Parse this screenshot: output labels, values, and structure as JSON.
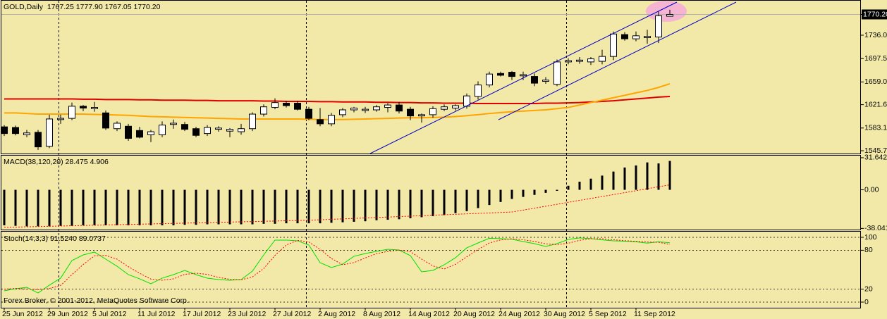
{
  "chart_data": [
    {
      "type": "candlestick",
      "title": "GOLD,Daily  1767.25 1777.90 1767.05 1770.20",
      "categories": [
        "25 Jun 2012",
        null,
        null,
        null,
        "29 Jun 2012",
        null,
        null,
        null,
        "5 Jul 2012",
        null,
        null,
        null,
        "11 Jul 2012",
        null,
        null,
        null,
        "17 Jul 2012",
        null,
        null,
        null,
        "23 Jul 2012",
        null,
        null,
        null,
        "27 Jul 2012",
        null,
        null,
        null,
        "2 Aug 2012",
        null,
        null,
        null,
        "8 Aug 2012",
        null,
        null,
        null,
        "14 Aug 2012",
        null,
        null,
        null,
        "20 Aug 2012",
        null,
        null,
        null,
        "24 Aug 2012",
        null,
        null,
        null,
        "30 Aug 2012",
        null,
        null,
        null,
        "5 Sep 2012",
        null,
        null,
        null,
        "11 Sep 2012",
        null,
        null,
        null
      ],
      "open": [
        1585,
        1584,
        1572,
        1576,
        1553,
        1597,
        1599,
        1619,
        1615,
        1608,
        1582,
        1586,
        1579,
        1572,
        1572,
        1589,
        1589,
        1582,
        1574,
        1581,
        1578,
        1577,
        1582,
        1606,
        1617,
        1624,
        1624,
        1614,
        1597,
        1590,
        1605,
        1613,
        1612,
        1613,
        1617,
        1621,
        1614,
        1603,
        1605,
        1614,
        1616,
        1619,
        1635,
        1654,
        1673,
        1675,
        1669,
        1668,
        1660,
        1655,
        1692,
        1693,
        1692,
        1693,
        1701,
        1737,
        1730,
        1732,
        1733,
        1767.25
      ],
      "high": [
        1588,
        1587,
        1580,
        1580,
        1605,
        1605,
        1625,
        1621,
        1626,
        1612,
        1594,
        1590,
        1585,
        1580,
        1594,
        1597,
        1593,
        1585,
        1588,
        1586,
        1583,
        1590,
        1609,
        1622,
        1632,
        1628,
        1628,
        1618,
        1616,
        1608,
        1616,
        1618,
        1618,
        1621,
        1624,
        1626,
        1618,
        1607,
        1619,
        1622,
        1622,
        1640,
        1660,
        1676,
        1676,
        1677,
        1676,
        1673,
        1667,
        1696,
        1698,
        1700,
        1700,
        1712,
        1742,
        1741,
        1742,
        1745,
        1775,
        1777.9
      ],
      "low": [
        1570,
        1571,
        1568,
        1547,
        1550,
        1590,
        1596,
        1611,
        1610,
        1580,
        1578,
        1562,
        1566,
        1560,
        1568,
        1582,
        1578,
        1568,
        1570,
        1577,
        1568,
        1572,
        1578,
        1602,
        1614,
        1617,
        1612,
        1596,
        1586,
        1586,
        1601,
        1609,
        1608,
        1610,
        1609,
        1607,
        1596,
        1592,
        1600,
        1611,
        1612,
        1615,
        1630,
        1650,
        1668,
        1662,
        1662,
        1652,
        1656,
        1652,
        1688,
        1689,
        1687,
        1688,
        1695,
        1727,
        1726,
        1722,
        1723,
        1767.05
      ],
      "close": [
        1574,
        1574,
        1575,
        1552,
        1598,
        1599,
        1619,
        1616,
        1617,
        1583,
        1591,
        1566,
        1568,
        1577,
        1588,
        1591,
        1581,
        1571,
        1584,
        1583,
        1581,
        1582,
        1606,
        1618,
        1625,
        1620,
        1614,
        1599,
        1590,
        1604,
        1613,
        1616,
        1614,
        1618,
        1621,
        1611,
        1603,
        1605,
        1615,
        1618,
        1620,
        1636,
        1654,
        1672,
        1670,
        1668,
        1671,
        1657,
        1662,
        1692,
        1694,
        1695,
        1697,
        1701,
        1738,
        1730,
        1735,
        1734,
        1768,
        1770.2
      ],
      "up_color": "#ffffff",
      "down_color": "#000000",
      "series": [
        {
          "color": "#e00000",
          "values": [
            1631,
            1631,
            1631,
            1631,
            1631,
            1631,
            1631,
            1630.5,
            1630.5,
            1630,
            1630,
            1630,
            1629.5,
            1629.5,
            1629,
            1629,
            1629,
            1628.5,
            1628.5,
            1628,
            1628,
            1628,
            1628,
            1627.5,
            1627.5,
            1627,
            1627,
            1627,
            1626.5,
            1626.5,
            1626,
            1626,
            1626,
            1625.5,
            1625.5,
            1625,
            1625,
            1624.5,
            1624.5,
            1624,
            1624,
            1624,
            1623.5,
            1623.5,
            1623.5,
            1623.5,
            1623.5,
            1623.5,
            1624,
            1624,
            1624.5,
            1625,
            1626,
            1627,
            1628,
            1629.5,
            1631,
            1632.5,
            1634,
            1635
          ]
        },
        {
          "color": "#ffa500",
          "values": [
            1608,
            1608,
            1607,
            1606,
            1606,
            1606,
            1606,
            1606,
            1605.5,
            1605,
            1604.5,
            1604,
            1603,
            1602,
            1601.5,
            1601,
            1600.5,
            1600,
            1599.5,
            1599,
            1598.5,
            1598,
            1598,
            1598,
            1598,
            1598,
            1598,
            1597.5,
            1597,
            1597,
            1597,
            1597.5,
            1598,
            1598.5,
            1599,
            1599.5,
            1600,
            1600,
            1600.5,
            1601,
            1602,
            1603.5,
            1605,
            1607,
            1608.5,
            1610,
            1611,
            1612,
            1613,
            1615,
            1617,
            1621,
            1625,
            1629,
            1633,
            1637,
            1641,
            1645,
            1650,
            1656
          ]
        }
      ],
      "ylim": [
        1541.1,
        1792.8
      ],
      "yticks": [
        {
          "value": 1770.2,
          "label": "1770.20"
        },
        {
          "value": 1736,
          "label": "1736.00"
        },
        {
          "value": 1697.5,
          "label": "1697.50"
        },
        {
          "value": 1659,
          "label": "1659.00"
        },
        {
          "value": 1621.6,
          "label": "1621.60"
        },
        {
          "value": 1583.1,
          "label": "1583.10"
        },
        {
          "value": 1545.7,
          "label": "1545.70"
        }
      ],
      "grid": false
    },
    {
      "type": "bar",
      "title": "MACD(38,120,20) 28.475 4.906",
      "color": "#000000",
      "values": [
        -35,
        -35.5,
        -36,
        -36,
        -36,
        -35.5,
        -35.5,
        -35,
        -35,
        -35,
        -35,
        -35,
        -35,
        -35,
        -35,
        -35,
        -34.5,
        -34.5,
        -34,
        -34,
        -34,
        -34,
        -34,
        -33.5,
        -33.5,
        -33,
        -33,
        -33,
        -33,
        -32.5,
        -32,
        -31.5,
        -31,
        -30,
        -29.5,
        -29,
        -28,
        -27,
        -26,
        -25,
        -23,
        -21,
        -18,
        -15,
        -12,
        -9,
        -7,
        -5,
        -3,
        -1,
        4,
        8,
        11,
        14,
        18,
        22,
        24,
        27,
        26,
        28.475
      ],
      "series": [
        {
          "color": "#ff0000",
          "values": [
            -37,
            -36.74,
            -36.48,
            -36.22,
            -35.96,
            -35.7,
            -35.44,
            -35.18,
            -34.92,
            -34.66,
            -34.4,
            -34.14,
            -33.88,
            -33.62,
            -33.36,
            -33.1,
            -32.84,
            -32.58,
            -32.32,
            -32.06,
            -31.8,
            -31.54,
            -31.28,
            -31.02,
            -30.76,
            -30.5,
            -30.24,
            -29.98,
            -29.55,
            -29.1,
            -28.65,
            -28.2,
            -27.75,
            -27.3,
            -26.85,
            -26.4,
            -25.95,
            -25.5,
            -25.05,
            -24.6,
            -24.15,
            -23.7,
            -23.25,
            -22.8,
            -22.35,
            -21.9,
            -20,
            -18.1,
            -16.2,
            -14.3,
            -12.3,
            -10.4,
            -8.5,
            -6.6,
            -4.7,
            -2.8,
            -0.9,
            1.1,
            3,
            4.906
          ]
        }
      ],
      "ylim": [
        -38.5,
        33
      ],
      "yticks": [
        31.642,
        {
          "value": 0,
          "label": "0.00"
        },
        -38.041
      ],
      "grid": false
    },
    {
      "type": "line",
      "title": "Stoch(14,3,3) 91.5240 89.0737",
      "series": [
        {
          "color": "#00e000",
          "values": [
            17.4,
            20.7,
            22.8,
            14.1,
            26.1,
            37,
            64.1,
            72.8,
            77.2,
            66.3,
            55.4,
            42.4,
            35.9,
            28.3,
            37,
            42.4,
            48.9,
            42.4,
            37,
            34.8,
            33.7,
            34.8,
            47.8,
            72.8,
            95.7,
            95.7,
            94.6,
            88,
            60.9,
            53.3,
            58.7,
            70.7,
            75,
            78.3,
            81.5,
            80.4,
            71.7,
            46.7,
            48.9,
            57.6,
            68.5,
            83.7,
            91.3,
            98.5,
            98,
            97,
            93.5,
            90.2,
            85.9,
            90.2,
            96.7,
            99,
            98,
            96,
            94.5,
            94,
            93,
            91,
            93,
            91.524
          ]
        },
        {
          "color": "#ff0000",
          "values": [
            20,
            21,
            20.3,
            19.2,
            21,
            25.7,
            42.4,
            58,
            71.4,
            72.1,
            66.3,
            54.7,
            44.6,
            35.5,
            33.7,
            35.9,
            42.8,
            44.6,
            42.8,
            38.1,
            35.2,
            34.4,
            38.8,
            51.8,
            72.1,
            88.1,
            95.3,
            92.8,
            81.2,
            67.4,
            57.6,
            60.9,
            68.1,
            74.7,
            78.3,
            80.1,
            77.9,
            66.3,
            55.8,
            51.1,
            58.3,
            69.9,
            81.2,
            91.2,
            95.9,
            97.8,
            96.2,
            93.6,
            89.9,
            88.8,
            90.9,
            95.3,
            97.9,
            97.7,
            96.2,
            94.8,
            93.8,
            92.7,
            92.3,
            89.0737
          ]
        }
      ],
      "ylim": [
        -8.7,
        106.5
      ],
      "yticks": [
        100,
        80,
        20,
        0
      ],
      "grid": true
    }
  ],
  "footer": "Forex Broker, © 2001-2012, MetaQuotes Software Corp."
}
